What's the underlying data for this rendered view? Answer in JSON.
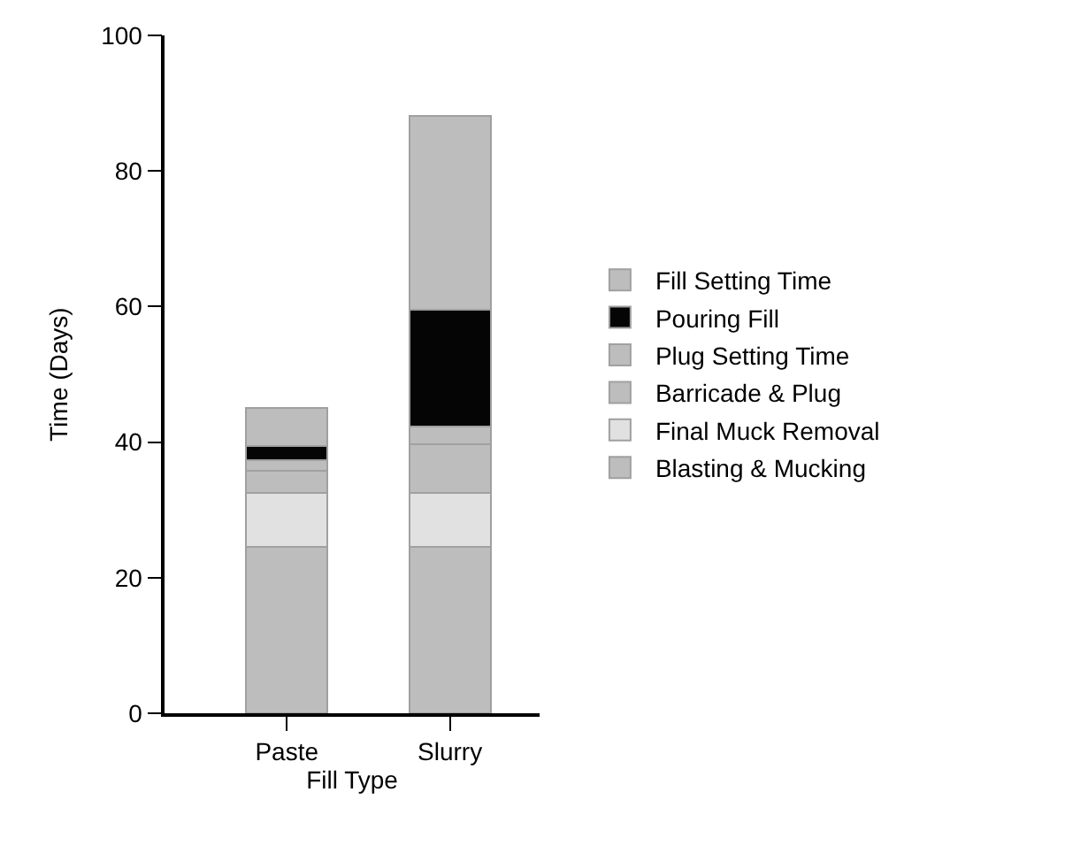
{
  "chart_data": {
    "type": "bar",
    "stacked": true,
    "xlabel": "Fill Type",
    "ylabel": "Time (Days)",
    "categories": [
      "Paste",
      "Slurry"
    ],
    "series": [
      {
        "name": "Blasting & Mucking",
        "color": "#bdbdbd",
        "values": [
          24.5,
          24.5
        ]
      },
      {
        "name": "Final Muck Removal",
        "color": "#e0e1e0",
        "values": [
          8,
          8
        ]
      },
      {
        "name": "Barricade & Plug",
        "color": "#bdbdbd",
        "values": [
          3.3,
          7.2
        ]
      },
      {
        "name": "Plug Setting Time",
        "color": "#bdbdbd",
        "values": [
          1.6,
          2.6
        ]
      },
      {
        "name": "Pouring Fill",
        "color": "#050505",
        "values": [
          2,
          17.2
        ]
      },
      {
        "name": "Fill Setting Time",
        "color": "#bdbdbd",
        "values": [
          5.6,
          28.6
        ]
      }
    ],
    "ylim": [
      0,
      100
    ],
    "yticks": [
      0,
      20,
      40,
      60,
      80,
      100
    ],
    "legend": "right"
  }
}
